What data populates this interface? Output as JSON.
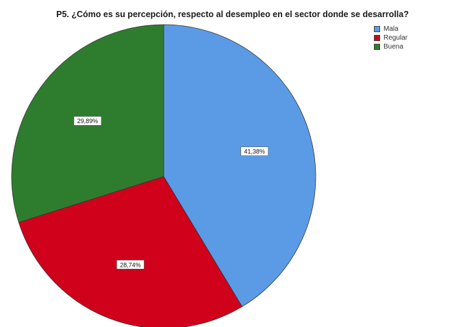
{
  "chart_data": {
    "type": "pie",
    "title": "P5. ¿Cómo es su percepción, respecto al desempleo en el sector donde se desarrolla?",
    "categories": [
      "Mala",
      "Regular",
      "Buena"
    ],
    "values": [
      41.38,
      28.74,
      29.89
    ],
    "labels": [
      "41,38%",
      "28,74%",
      "29,89%"
    ],
    "colors": [
      "#5b9be6",
      "#d0021b",
      "#2e7d2e"
    ],
    "start_angle_deg": 0,
    "direction": "clockwise",
    "legend_position": "top-right"
  }
}
